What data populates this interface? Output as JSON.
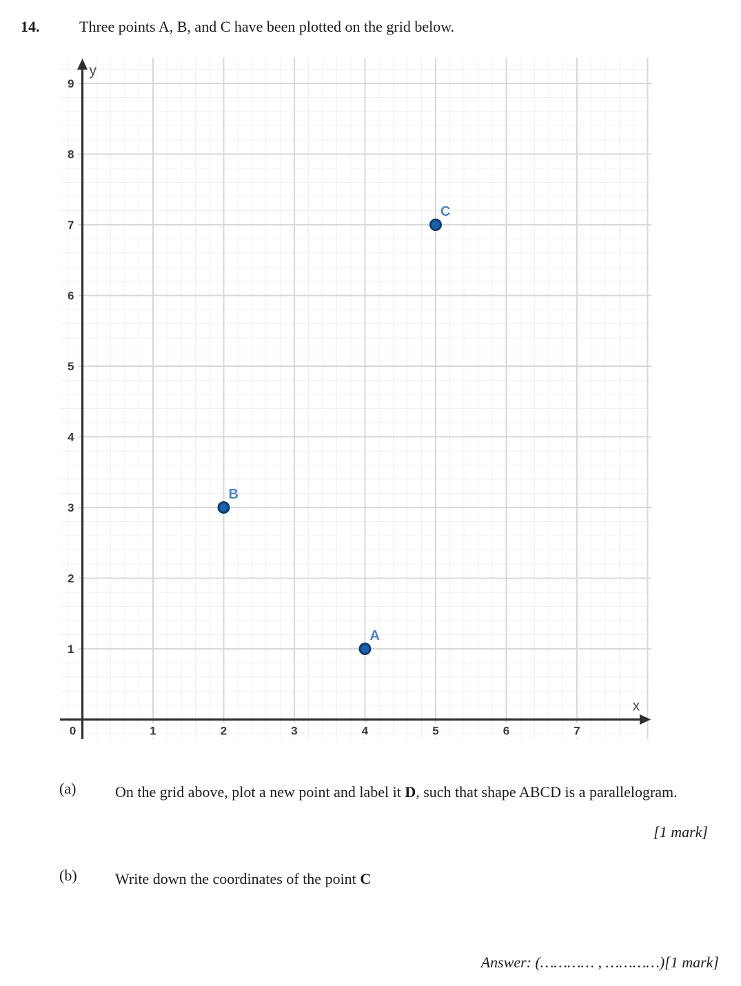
{
  "header": {
    "number": "14.",
    "text": "Three points A, B, and C have been plotted on the grid below."
  },
  "parts": {
    "a": {
      "label": "(a)",
      "text_before": "On the grid above, plot a new point and label it ",
      "bold": "D",
      "text_after": ", such that shape ABCD is a parallelogram.",
      "mark": "[1 mark]"
    },
    "b": {
      "label": "(b)",
      "text_before": "Write down the coordinates of the point ",
      "bold": "C"
    }
  },
  "answer": {
    "line": "Answer: (………… , …………)[1 mark]"
  },
  "chart_data": {
    "type": "scatter",
    "title": "",
    "xlabel": "x",
    "ylabel": "y",
    "xlim": [
      0,
      8.3
    ],
    "ylim": [
      0,
      9.4
    ],
    "grid": true,
    "points": [
      {
        "label": "A",
        "x": 4,
        "y": 1
      },
      {
        "label": "B",
        "x": 2,
        "y": 3
      },
      {
        "label": "C",
        "x": 5,
        "y": 7
      }
    ],
    "x_tick_labels": [
      "1",
      "2",
      "3",
      "4",
      "5",
      "6",
      "7"
    ],
    "y_tick_labels": [
      "1",
      "2",
      "3",
      "4",
      "5",
      "6",
      "7",
      "8",
      "9"
    ],
    "origin_label": "0"
  },
  "colors": {
    "axis": "#2f2f2f",
    "grid_major": "#d8d8d8",
    "grid_minor": "#f1f0f0",
    "tick_label": "#3a3a3a",
    "axis_letter": "#4c4c4c",
    "point_fill": "#1a60ae",
    "point_stroke": "#0f3d70",
    "point_label": "#4d84c8"
  }
}
